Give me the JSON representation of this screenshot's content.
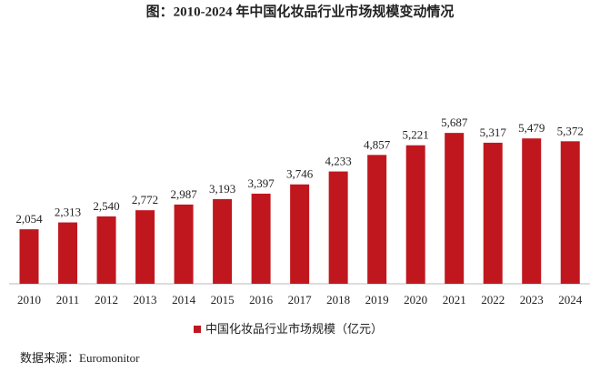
{
  "chart_data": {
    "type": "bar",
    "title": "图：2010-2024 年中国化妆品行业市场规模变动情况",
    "categories": [
      "2010",
      "2011",
      "2012",
      "2013",
      "2014",
      "2015",
      "2016",
      "2017",
      "2018",
      "2019",
      "2020",
      "2021",
      "2022",
      "2023",
      "2024"
    ],
    "series": [
      {
        "name": "中国化妆品行业市场规模（亿元）",
        "color": "#c0171f",
        "values": [
          2054,
          2313,
          2540,
          2772,
          2987,
          3193,
          3397,
          3746,
          4233,
          4857,
          5221,
          5687,
          5317,
          5479,
          5372
        ],
        "value_labels": [
          "2,054",
          "2,313",
          "2,540",
          "2,772",
          "2,987",
          "3,193",
          "3,397",
          "3,746",
          "4,233",
          "4,857",
          "5,221",
          "5,687",
          "5,317",
          "5,479",
          "5,372"
        ]
      }
    ],
    "ylim": [
      0,
      6000
    ],
    "source": "数据来源：Euromonitor"
  }
}
